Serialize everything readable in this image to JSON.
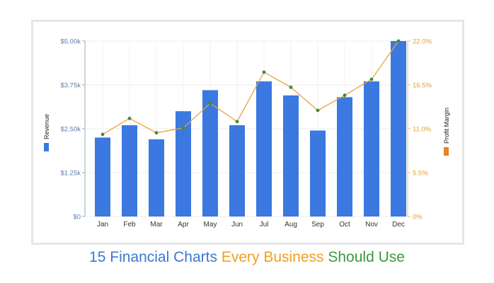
{
  "chart_data": {
    "type": "bar",
    "categories": [
      "Jan",
      "Feb",
      "Mar",
      "Apr",
      "May",
      "Jun",
      "Jul",
      "Aug",
      "Sep",
      "Oct",
      "Nov",
      "Dec"
    ],
    "series": [
      {
        "name": "Revenue",
        "type": "bar",
        "axis": "left",
        "color": "#3b78e0",
        "values": [
          2250,
          2600,
          2200,
          3000,
          3600,
          2600,
          3850,
          3450,
          2450,
          3400,
          3850,
          5000
        ]
      },
      {
        "name": "Profit Margin",
        "type": "line",
        "axis": "right",
        "color": "#e8a23a",
        "marker_color": "#3d8b3d",
        "legend_color": "#e8821e",
        "values": [
          10.3,
          12.3,
          10.5,
          11.1,
          14.2,
          11.9,
          18.1,
          16.2,
          13.3,
          15.2,
          17.2,
          22.0
        ]
      }
    ],
    "ylabel": "Revenue",
    "y2label": "Profit Margin",
    "ylim": [
      0,
      5000
    ],
    "y2lim": [
      0,
      22
    ],
    "yticks": [
      "$0",
      "$1.25k",
      "$2.50k",
      "$3.75k",
      "$5.00k"
    ],
    "y2ticks": [
      "0%",
      "5.5%",
      "11.0%",
      "16.5%",
      "22.0%"
    ],
    "grid": true
  },
  "caption": {
    "part1": "15 Financial Charts ",
    "part2": "Every Business ",
    "part3": "Should Use",
    "colors": [
      "#3b78d0",
      "#f0a020",
      "#3a9a3a"
    ]
  }
}
